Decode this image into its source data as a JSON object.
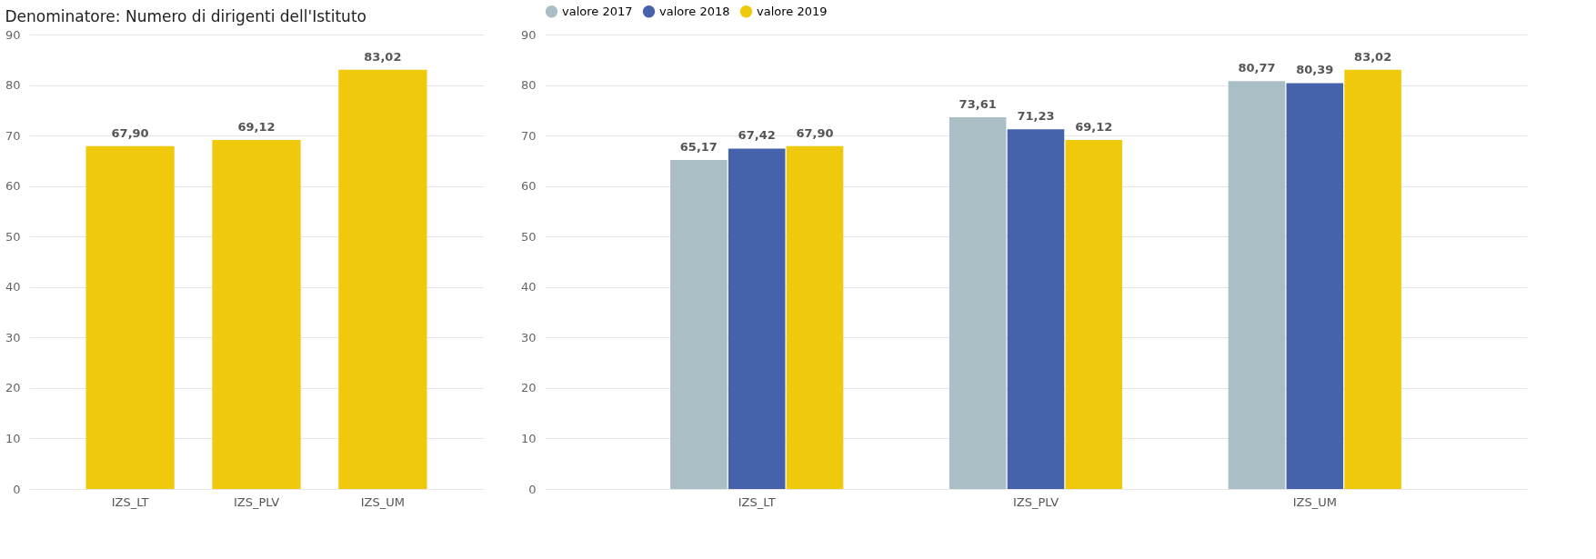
{
  "chart_data": [
    {
      "type": "bar",
      "title": "Denominatore: Numero di dirigenti dell'Istituto",
      "categories": [
        "IZS_LT",
        "IZS_PLV",
        "IZS_UM"
      ],
      "series": [
        {
          "color": "#f0c80c",
          "values": [
            67.9,
            69.12,
            83.02
          ],
          "value_labels": [
            "67,90",
            "69,12",
            "83,02"
          ]
        }
      ],
      "ylim": [
        0,
        90
      ],
      "yticks": [
        0,
        10,
        20,
        30,
        40,
        50,
        60,
        70,
        80,
        90
      ],
      "grid": "y"
    },
    {
      "type": "bar",
      "categories": [
        "IZS_LT",
        "IZS_PLV",
        "IZS_UM"
      ],
      "series": [
        {
          "name": "valore 2017",
          "color": "#aabec6",
          "values": [
            65.17,
            73.61,
            80.77
          ],
          "value_labels": [
            "65,17",
            "73,61",
            "80,77"
          ]
        },
        {
          "name": "valore 2018",
          "color": "#4562aa",
          "values": [
            67.42,
            71.23,
            80.39
          ],
          "value_labels": [
            "67,42",
            "71,23",
            "80,39"
          ]
        },
        {
          "name": "valore 2019",
          "color": "#f0c80c",
          "values": [
            67.9,
            69.12,
            83.02
          ],
          "value_labels": [
            "67,90",
            "69,12",
            "83,02"
          ]
        }
      ],
      "ylim": [
        0,
        90
      ],
      "yticks": [
        0,
        10,
        20,
        30,
        40,
        50,
        60,
        70,
        80,
        90
      ],
      "grid": "y",
      "legend": "top left"
    }
  ]
}
